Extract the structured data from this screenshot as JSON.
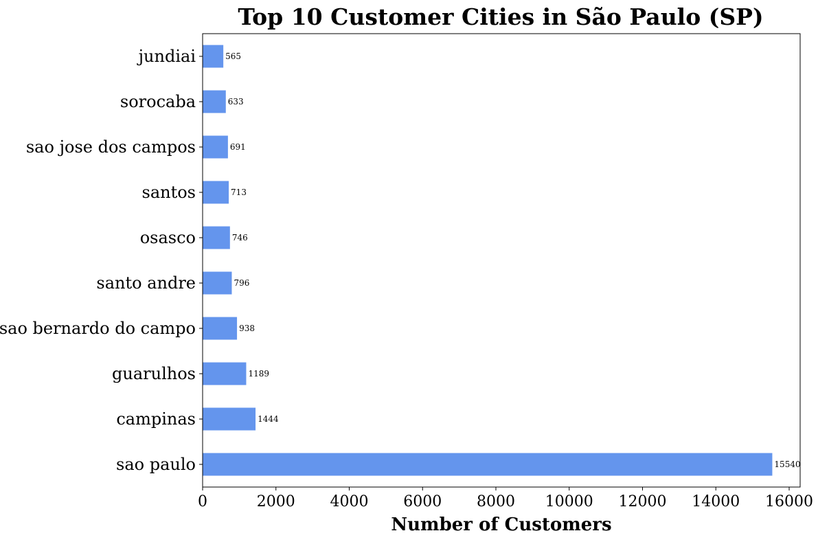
{
  "chart_data": {
    "type": "bar",
    "orientation": "horizontal",
    "title": "Top 10 Customer Cities in São Paulo (SP)",
    "xlabel": "Number of Customers",
    "ylabel": "",
    "categories": [
      "jundiai",
      "sorocaba",
      "sao jose dos campos",
      "santos",
      "osasco",
      "santo andre",
      "sao bernardo do campo",
      "guarulhos",
      "campinas",
      "sao paulo"
    ],
    "values": [
      565,
      633,
      691,
      713,
      746,
      796,
      938,
      1189,
      1444,
      15540
    ],
    "data_labels": [
      "565",
      "633",
      "691",
      "713",
      "746",
      "796",
      "938",
      "1189",
      "1444",
      "15540"
    ],
    "xlim": [
      0,
      16300
    ],
    "xticks": [
      0,
      2000,
      4000,
      6000,
      8000,
      10000,
      12000,
      14000,
      16000
    ],
    "xtick_labels": [
      "0",
      "2000",
      "4000",
      "6000",
      "8000",
      "10000",
      "12000",
      "14000",
      "16000"
    ],
    "bar_color": "#6495ed",
    "grid": false,
    "legend": "none"
  }
}
